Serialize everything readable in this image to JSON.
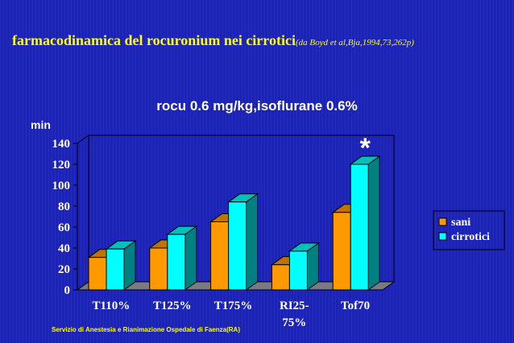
{
  "slide": {
    "title": "farmacodinamica del rocuronium nei cirrotici",
    "citation": "(da Boyd et al,Bja,1994,73,262p)",
    "footer": "Servizio di Anestesia e Rianimazione Ospedale di Faenza(RA)"
  },
  "colors": {
    "background": "#1a22b8",
    "title_text": "#ffff00",
    "sani": "#ff9900",
    "cirrotici": "#00ffff"
  },
  "chart_data": {
    "type": "bar",
    "title": "rocu 0.6 mg/kg,isoflurane 0.6%",
    "ylabel": "min",
    "xlabel": "",
    "categories": [
      [
        "T110%"
      ],
      [
        "T125%"
      ],
      [
        "T175%"
      ],
      [
        "RI25-",
        "75%"
      ],
      [
        "Tof70"
      ]
    ],
    "series": [
      {
        "name": "sani",
        "values": [
          31,
          40,
          65,
          24,
          74
        ]
      },
      {
        "name": "cirrotici",
        "values": [
          39,
          53,
          84,
          37,
          120
        ]
      }
    ],
    "ylim": [
      0,
      140
    ],
    "yticks": [
      "0",
      "20",
      "40",
      "60",
      "80",
      "100",
      "120",
      "140"
    ],
    "annotation": {
      "text": "*",
      "category_index": 4
    },
    "legend_position": "right",
    "style": "3d",
    "grid": false
  }
}
